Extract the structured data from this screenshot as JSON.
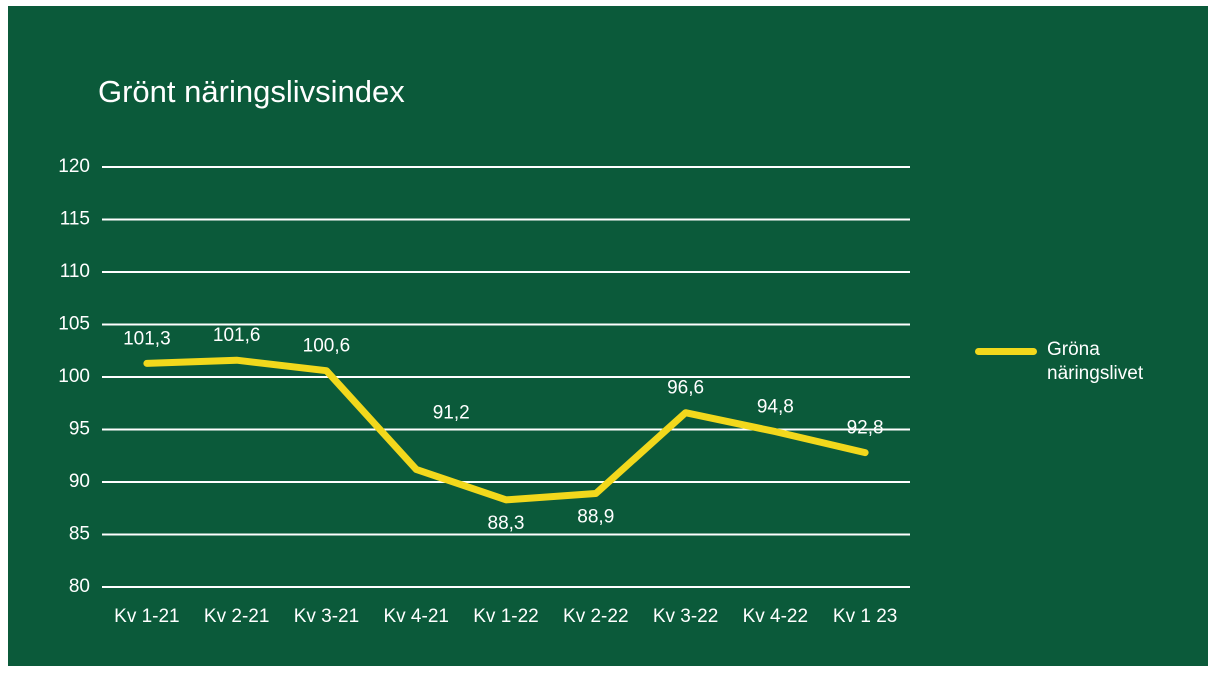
{
  "chart_data": {
    "type": "line",
    "title": "Grönt näringslivsindex",
    "categories": [
      "Kv 1-21",
      "Kv 2-21",
      "Kv 3-21",
      "Kv 4-21",
      "Kv 1-22",
      "Kv 2-22",
      "Kv 3-22",
      "Kv 4-22",
      "Kv 1 23"
    ],
    "series": [
      {
        "name": "Gröna näringslivet",
        "color": "#f2d81c",
        "values": [
          101.3,
          101.6,
          100.6,
          91.2,
          88.3,
          88.9,
          96.6,
          94.8,
          92.8
        ],
        "value_labels": [
          "101,3",
          "101,6",
          "100,6",
          "91,2",
          "88,3",
          "88,9",
          "96,6",
          "94,8",
          "92,8"
        ]
      }
    ],
    "ylim": [
      80,
      120
    ],
    "yticks": [
      80,
      85,
      90,
      95,
      100,
      105,
      110,
      115,
      120
    ],
    "grid": true,
    "legend": "right"
  }
}
